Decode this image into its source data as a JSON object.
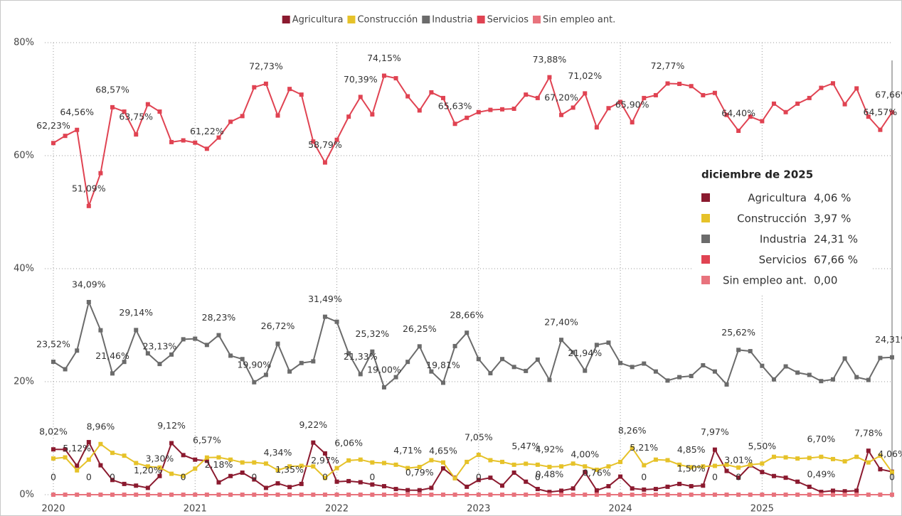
{
  "chart_data": {
    "type": "line",
    "categories": [
      "2020",
      null,
      null,
      null,
      null,
      null,
      null,
      null,
      null,
      null,
      null,
      null,
      "2021",
      null,
      null,
      null,
      null,
      null,
      null,
      null,
      null,
      null,
      null,
      null,
      "2022",
      null,
      null,
      null,
      null,
      null,
      null,
      null,
      null,
      null,
      null,
      null,
      "2023",
      null,
      null,
      null,
      null,
      null,
      null,
      null,
      null,
      null,
      null,
      null,
      "2024",
      null,
      null,
      null,
      null,
      null,
      null,
      null,
      null,
      null,
      null,
      null,
      "2025",
      null,
      null,
      null,
      null,
      null,
      null,
      null,
      null,
      null,
      null,
      null
    ],
    "ylim": [
      0,
      80
    ],
    "yticks": [
      {
        "value": 0,
        "label": "0%"
      },
      {
        "value": 20,
        "label": "20%"
      },
      {
        "value": 40,
        "label": "40%"
      },
      {
        "value": 60,
        "label": "60%"
      },
      {
        "value": 80,
        "label": "80%"
      }
    ],
    "grid": true,
    "legend": "top",
    "series": [
      {
        "name": "Agricultura",
        "color": "#8b1a2f",
        "values": [
          8.02,
          8.0,
          5.12,
          9.3,
          5.2,
          2.6,
          1.9,
          1.6,
          1.2,
          3.3,
          9.12,
          7.0,
          6.2,
          6.0,
          2.18,
          3.3,
          3.9,
          2.7,
          1.2,
          2.0,
          1.35,
          1.9,
          9.22,
          7.3,
          2.3,
          2.4,
          2.2,
          1.8,
          1.5,
          1.0,
          0.8,
          0.79,
          1.2,
          4.65,
          3.0,
          1.4,
          2.6,
          3.0,
          1.6,
          3.9,
          2.3,
          1.0,
          0.48,
          0.7,
          1.1,
          4.0,
          0.76,
          1.5,
          3.2,
          1.1,
          0.9,
          1.0,
          1.4,
          1.9,
          1.5,
          1.6,
          7.97,
          4.2,
          3.01,
          5.2,
          4.0,
          3.3,
          3.0,
          2.3,
          1.4,
          0.49,
          0.7,
          0.6,
          0.7,
          7.78,
          4.5,
          4.06
        ],
        "value_labels": [
          "8,02%",
          null,
          "5,12%",
          null,
          null,
          null,
          null,
          null,
          "1,20%",
          "3,30%",
          "9,12%",
          null,
          null,
          null,
          "2,18%",
          null,
          null,
          null,
          null,
          null,
          "1,35%",
          null,
          "9,22%",
          null,
          null,
          null,
          null,
          null,
          null,
          null,
          null,
          "0,79%",
          null,
          "4,65%",
          null,
          null,
          null,
          null,
          null,
          null,
          null,
          null,
          "0,48%",
          null,
          null,
          "4,00%",
          "0,76%",
          null,
          null,
          null,
          null,
          null,
          null,
          null,
          "1,50%",
          null,
          "7,97%",
          null,
          "3,01%",
          null,
          null,
          null,
          null,
          null,
          null,
          "0,49%",
          null,
          null,
          null,
          "7,78%",
          null,
          "4,06%"
        ]
      },
      {
        "name": "Construcción",
        "color": "#e6c229",
        "values": [
          6.4,
          6.6,
          4.3,
          6.2,
          8.96,
          7.4,
          6.9,
          5.6,
          5.0,
          4.8,
          3.7,
          3.3,
          4.6,
          6.57,
          6.6,
          6.2,
          5.7,
          5.7,
          5.5,
          4.34,
          5.0,
          5.1,
          5.0,
          2.97,
          4.7,
          6.06,
          6.2,
          5.7,
          5.6,
          5.3,
          4.71,
          4.9,
          6.1,
          5.7,
          2.9,
          5.8,
          7.05,
          6.1,
          5.8,
          5.3,
          5.47,
          5.3,
          4.92,
          5.0,
          5.5,
          5.0,
          4.4,
          5.0,
          5.8,
          8.26,
          5.21,
          6.2,
          6.1,
          5.3,
          4.85,
          5.0,
          5.1,
          5.3,
          4.8,
          5.3,
          5.5,
          6.7,
          6.6,
          6.4,
          6.5,
          6.7,
          6.3,
          5.9,
          6.7,
          5.7,
          6.9,
          3.97
        ],
        "value_labels": [
          null,
          null,
          null,
          null,
          "8,96%",
          null,
          null,
          null,
          null,
          null,
          null,
          null,
          null,
          "6,57%",
          null,
          null,
          null,
          null,
          null,
          "4,34%",
          null,
          null,
          null,
          "2,97%",
          null,
          "6,06%",
          null,
          null,
          null,
          null,
          "4,71%",
          null,
          null,
          null,
          null,
          null,
          "7,05%",
          null,
          null,
          null,
          "5,47%",
          null,
          "4,92%",
          null,
          null,
          null,
          null,
          null,
          null,
          "8,26%",
          "5,21%",
          null,
          null,
          null,
          "4,85%",
          null,
          null,
          null,
          null,
          null,
          "5,50%",
          null,
          null,
          null,
          null,
          "6,70%",
          null,
          null,
          null,
          null,
          null,
          null
        ]
      },
      {
        "name": "Industria",
        "color": "#6b6b6b",
        "values": [
          23.52,
          22.2,
          25.5,
          34.09,
          29.1,
          21.46,
          23.5,
          29.14,
          25,
          23.13,
          24.8,
          27.5,
          27.6,
          26.5,
          28.23,
          24.6,
          24,
          19.9,
          21.2,
          26.72,
          21.8,
          23.3,
          23.6,
          31.49,
          30.6,
          25,
          21.33,
          25.32,
          19,
          20.8,
          23.5,
          26.25,
          21.8,
          19.81,
          26.3,
          28.66,
          24,
          21.5,
          24,
          22.6,
          21.9,
          23.9,
          20.3,
          27.4,
          25.2,
          21.94,
          26.5,
          26.9,
          23.3,
          22.6,
          23.2,
          21.8,
          20.2,
          20.8,
          21,
          22.9,
          21.8,
          19.5,
          25.62,
          25.4,
          22.8,
          20.4,
          22.7,
          21.6,
          21.2,
          20.1,
          20.4,
          24.1,
          20.8,
          20.3,
          24.2,
          24.31
        ],
        "value_labels": [
          "23,52%",
          null,
          null,
          "34,09%",
          null,
          "21,46%",
          null,
          "29,14%",
          null,
          "23,13%",
          null,
          null,
          null,
          null,
          "28,23%",
          null,
          null,
          "19,90%",
          null,
          "26,72%",
          null,
          null,
          null,
          "31,49%",
          null,
          null,
          "21,33%",
          "25,32%",
          "19,00%",
          null,
          null,
          "26,25%",
          null,
          "19,81%",
          null,
          "28,66%",
          null,
          null,
          null,
          null,
          null,
          null,
          null,
          "27,40%",
          null,
          "21,94%",
          null,
          null,
          null,
          null,
          null,
          null,
          null,
          null,
          null,
          null,
          null,
          null,
          "25,62%",
          null,
          null,
          null,
          null,
          null,
          null,
          null,
          null,
          null,
          null,
          null,
          null,
          "24,31%"
        ]
      },
      {
        "name": "Servicios",
        "color": "#e04352",
        "values": [
          62.23,
          63.5,
          64.56,
          51.09,
          56.9,
          68.57,
          67.8,
          63.75,
          69.1,
          67.8,
          62.4,
          62.7,
          62.3,
          61.22,
          63.2,
          66,
          67,
          72.1,
          72.73,
          67.1,
          71.8,
          70.8,
          62.5,
          58.79,
          62.8,
          66.9,
          70.39,
          67.3,
          74.15,
          73.7,
          70.5,
          68,
          71.2,
          70.2,
          65.63,
          66.7,
          67.7,
          68.1,
          68.2,
          68.3,
          70.8,
          70.2,
          73.88,
          67.2,
          68.5,
          71.02,
          65,
          68.4,
          69.5,
          65.9,
          70.2,
          70.7,
          72.77,
          72.7,
          72.3,
          70.7,
          71.1,
          67.2,
          64.4,
          66.9,
          66.1,
          69.2,
          67.7,
          69.2,
          70.2,
          72,
          72.8,
          69.1,
          71.9,
          66.9,
          64.57,
          67.66
        ],
        "value_labels": [
          "62,23%",
          null,
          "64,56%",
          "51,09%",
          null,
          "68,57%",
          null,
          "63,75%",
          null,
          null,
          null,
          null,
          null,
          "61,22%",
          null,
          null,
          null,
          null,
          "72,73%",
          null,
          null,
          null,
          null,
          "58,79%",
          null,
          null,
          "70,39%",
          null,
          "74,15%",
          null,
          null,
          null,
          null,
          null,
          "65,63%",
          null,
          null,
          null,
          null,
          null,
          null,
          null,
          "73,88%",
          "67,20%",
          null,
          "71,02%",
          null,
          null,
          null,
          "65,90%",
          null,
          null,
          "72,77%",
          null,
          null,
          null,
          null,
          null,
          "64,40%",
          null,
          null,
          null,
          null,
          null,
          null,
          null,
          null,
          null,
          null,
          null,
          "64,57%",
          "67,66%"
        ]
      },
      {
        "name": "Sin empleo ant.",
        "color": "#e8737d",
        "values": [
          0,
          0,
          0,
          0,
          0,
          0,
          0,
          0,
          0,
          0,
          0,
          0,
          0,
          0,
          0,
          0,
          0,
          0,
          0,
          0,
          0,
          0,
          0,
          0,
          0,
          0,
          0,
          0,
          0,
          0,
          0,
          0,
          0,
          0,
          0,
          0,
          0,
          0,
          0,
          0,
          0,
          0,
          0,
          0,
          0,
          0,
          0,
          0,
          0,
          0,
          0,
          0,
          0,
          0,
          0,
          0,
          0,
          0,
          0,
          0,
          0,
          0,
          0,
          0,
          0,
          0,
          0,
          0,
          0,
          0,
          0,
          0
        ],
        "value_labels": [
          "0",
          null,
          null,
          "0",
          null,
          "0",
          null,
          null,
          null,
          null,
          null,
          "0",
          null,
          null,
          null,
          null,
          null,
          "0",
          null,
          null,
          null,
          null,
          null,
          "0",
          null,
          null,
          null,
          "0",
          null,
          null,
          null,
          null,
          null,
          null,
          null,
          null,
          "0",
          null,
          null,
          null,
          null,
          "0",
          null,
          null,
          null,
          null,
          null,
          null,
          null,
          null,
          "0",
          null,
          null,
          null,
          null,
          null,
          "0",
          null,
          "0",
          null,
          null,
          null,
          null,
          null,
          null,
          null,
          null,
          null,
          null,
          null,
          null,
          "0"
        ]
      }
    ],
    "card": {
      "title": "diciembre de 2025",
      "rows": [
        {
          "name": "Agricultura",
          "value": "4,06 %"
        },
        {
          "name": "Construcción",
          "value": "3,97 %"
        },
        {
          "name": "Industria",
          "value": "24,31 %"
        },
        {
          "name": "Servicios",
          "value": "67,66 %"
        },
        {
          "name": "Sin empleo ant.",
          "value": "0,00"
        }
      ]
    }
  }
}
